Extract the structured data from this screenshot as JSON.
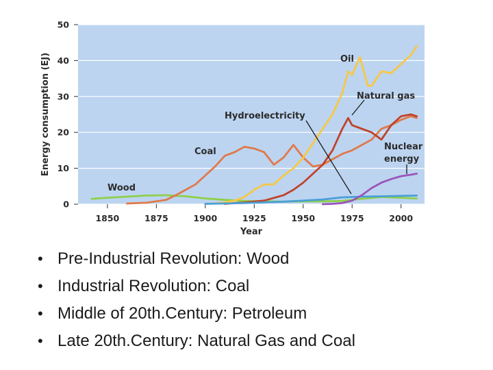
{
  "chart_data": {
    "type": "line",
    "xlabel": "Year",
    "ylabel": "Energy consumption (EJ)",
    "xlim": [
      1835,
      2012
    ],
    "ylim": [
      0,
      50
    ],
    "x_ticks": [
      1850,
      1875,
      1900,
      1925,
      1950,
      1975,
      2000
    ],
    "y_ticks": [
      0,
      10,
      20,
      30,
      40,
      50
    ],
    "grid": "horizontal",
    "series": [
      {
        "name": "Wood",
        "color": "#8fcf4a",
        "x": [
          1842,
          1850,
          1860,
          1870,
          1880,
          1890,
          1900,
          1910,
          1920,
          1930,
          1940,
          1950,
          1960,
          1970,
          1980,
          1990,
          2000,
          2008
        ],
        "y": [
          1.5,
          1.8,
          2.1,
          2.4,
          2.5,
          2.2,
          1.6,
          1.2,
          0.9,
          0.8,
          0.7,
          0.8,
          0.8,
          0.9,
          1.5,
          2.0,
          1.8,
          1.6
        ]
      },
      {
        "name": "Coal",
        "color": "#e0794a",
        "x": [
          1860,
          1870,
          1880,
          1885,
          1890,
          1895,
          1900,
          1905,
          1910,
          1915,
          1920,
          1925,
          1930,
          1935,
          1940,
          1945,
          1950,
          1955,
          1960,
          1965,
          1970,
          1975,
          1980,
          1985,
          1990,
          1995,
          2000,
          2005,
          2008
        ],
        "y": [
          0.2,
          0.4,
          1.2,
          2.5,
          4.0,
          5.5,
          8.0,
          10.5,
          13.5,
          14.5,
          16.0,
          15.5,
          14.5,
          11.0,
          13.0,
          16.5,
          13.0,
          10.5,
          11.0,
          12.5,
          14.0,
          15.0,
          16.5,
          18.0,
          21.0,
          22.0,
          23.5,
          24.5,
          24.0
        ]
      },
      {
        "name": "Oil",
        "color": "#f6c846",
        "x": [
          1900,
          1905,
          1910,
          1915,
          1920,
          1925,
          1930,
          1935,
          1940,
          1945,
          1950,
          1955,
          1960,
          1965,
          1970,
          1973,
          1975,
          1979,
          1983,
          1985,
          1990,
          1995,
          2000,
          2005,
          2008
        ],
        "y": [
          0.1,
          0.2,
          0.5,
          1.0,
          2.0,
          4.0,
          5.5,
          5.5,
          8.0,
          10.0,
          13.0,
          17.0,
          21.0,
          25.0,
          31.0,
          37.0,
          36.0,
          41.0,
          33.0,
          33.0,
          37.0,
          36.5,
          39.0,
          41.5,
          44.0
        ]
      },
      {
        "name": "Natural gas",
        "color": "#c0432a",
        "x": [
          1910,
          1920,
          1930,
          1940,
          1945,
          1950,
          1955,
          1960,
          1965,
          1970,
          1973,
          1975,
          1980,
          1985,
          1990,
          1995,
          2000,
          2005,
          2008
        ],
        "y": [
          0.1,
          0.5,
          1.0,
          2.5,
          4.0,
          6.0,
          8.5,
          11.0,
          15.0,
          21.0,
          24.0,
          22.0,
          21.0,
          20.0,
          18.0,
          22.0,
          24.5,
          25.0,
          24.5
        ]
      },
      {
        "name": "Hydroelectricity",
        "color": "#4a9fd6",
        "x": [
          1900,
          1920,
          1940,
          1950,
          1960,
          1970,
          1975,
          1980,
          1990,
          2000,
          2008
        ],
        "y": [
          0.1,
          0.3,
          0.7,
          1.0,
          1.3,
          1.9,
          2.0,
          2.1,
          2.2,
          2.3,
          2.4
        ]
      },
      {
        "name": "Nuclear energy",
        "color": "#9a55b8",
        "x": [
          1960,
          1965,
          1970,
          1975,
          1980,
          1985,
          1990,
          1995,
          2000,
          2005,
          2008
        ],
        "y": [
          0.0,
          0.1,
          0.3,
          1.0,
          2.5,
          4.5,
          6.0,
          7.0,
          7.8,
          8.2,
          8.5
        ]
      }
    ],
    "labels": {
      "oil": "Oil",
      "natural_gas": "Natural gas",
      "hydro": "Hydroelectricity",
      "coal": "Coal",
      "wood": "Wood",
      "nuclear_line1": "Nuclear",
      "nuclear_line2": "energy"
    }
  },
  "bullets": [
    "Pre-Industrial Revolution: Wood",
    "Industrial Revolution: Coal",
    "Middle of 20th.Century: Petroleum",
    "Late 20th.Century: Natural Gas and Coal"
  ],
  "bullet_glyph": "•"
}
